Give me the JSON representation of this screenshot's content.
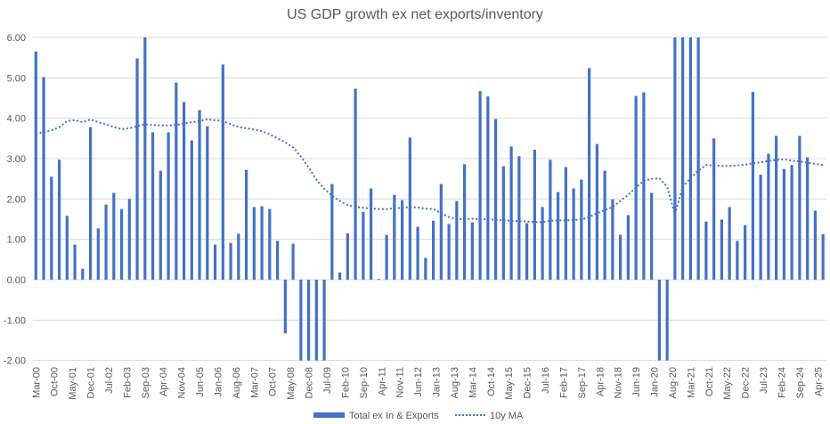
{
  "chart_data": {
    "type": "bar",
    "title": "US GDP growth ex net exports/inventory",
    "xlabel": "",
    "ylabel": "",
    "ylim": [
      -2,
      6
    ],
    "yticks": [
      "6.00",
      "5.00",
      "4.00",
      "3.00",
      "2.00",
      "1.00",
      "0.00",
      "-1.00",
      "-2.00"
    ],
    "ytick_values": [
      6,
      5,
      4,
      3,
      2,
      1,
      0,
      -1,
      -2
    ],
    "grid": true,
    "legend_position": "bottom",
    "x_start": "Mar-00",
    "x_step_months": 3,
    "xtick_labels": [
      "Mar-00",
      "Oct-00",
      "May-01",
      "Dec-01",
      "Jul-02",
      "Feb-03",
      "Sep-03",
      "Apr-04",
      "Nov-04",
      "Jun-05",
      "Jan-06",
      "Aug-06",
      "Mar-07",
      "Oct-07",
      "May-08",
      "Dec-08",
      "Jul-09",
      "Feb-10",
      "Sep-10",
      "Apr-11",
      "Nov-11",
      "Jun-12",
      "Jan-13",
      "Aug-13",
      "Mar-14",
      "Oct-14",
      "May-15",
      "Dec-15",
      "Jul-16",
      "Feb-17",
      "Sep-17",
      "Apr-18",
      "Nov-18",
      "Jun-19",
      "Jan-20",
      "Aug-20",
      "Mar-21",
      "Oct-21",
      "May-22",
      "Dec-22",
      "Jul-23",
      "Feb-24",
      "Sep-24",
      "Apr-25"
    ],
    "xtick_step_months": 7,
    "series": [
      {
        "name": "Total ex In & Exports",
        "type": "bar",
        "color": "#4472C4",
        "values": [
          5.65,
          5.02,
          2.55,
          2.97,
          1.58,
          0.87,
          0.27,
          3.78,
          1.27,
          1.86,
          2.15,
          1.75,
          2.0,
          5.48,
          6.0,
          3.65,
          2.7,
          3.65,
          4.88,
          4.4,
          3.45,
          4.2,
          3.8,
          0.87,
          5.33,
          0.91,
          1.14,
          2.72,
          1.8,
          1.82,
          1.75,
          0.96,
          -1.33,
          0.89,
          -2.0,
          -2.0,
          -2.0,
          -2.0,
          2.37,
          0.18,
          1.15,
          4.73,
          1.68,
          2.26,
          0.02,
          1.11,
          2.1,
          1.97,
          3.52,
          1.31,
          0.54,
          1.46,
          2.37,
          1.38,
          1.95,
          2.86,
          1.42,
          4.67,
          4.54,
          3.98,
          2.81,
          3.3,
          3.06,
          1.4,
          3.22,
          1.8,
          2.97,
          2.17,
          2.79,
          2.26,
          2.48,
          5.24,
          3.36,
          2.7,
          1.99,
          1.11,
          1.6,
          4.55,
          4.64,
          2.15,
          -2.0,
          -2.0,
          6.0,
          6.0,
          6.0,
          6.0,
          1.44,
          3.5,
          1.49,
          1.8,
          0.96,
          1.35,
          4.65,
          2.6,
          3.12,
          3.56,
          2.74,
          2.84,
          3.56,
          3.03,
          1.71,
          1.13
        ]
      },
      {
        "name": "10y MA",
        "type": "line",
        "style": "dotted",
        "color": "#4472C4",
        "values": [
          3.6,
          3.66,
          3.7,
          3.78,
          3.93,
          3.95,
          3.9,
          3.97,
          3.9,
          3.85,
          3.78,
          3.73,
          3.75,
          3.8,
          3.85,
          3.83,
          3.82,
          3.82,
          3.83,
          3.87,
          3.9,
          3.93,
          3.97,
          3.95,
          3.93,
          3.85,
          3.78,
          3.75,
          3.72,
          3.68,
          3.6,
          3.5,
          3.4,
          3.28,
          3.05,
          2.78,
          2.48,
          2.25,
          2.08,
          1.95,
          1.85,
          1.8,
          1.78,
          1.76,
          1.75,
          1.75,
          1.77,
          1.78,
          1.8,
          1.79,
          1.76,
          1.75,
          1.65,
          1.55,
          1.5,
          1.5,
          1.51,
          1.5,
          1.5,
          1.48,
          1.47,
          1.46,
          1.45,
          1.44,
          1.43,
          1.42,
          1.46,
          1.47,
          1.47,
          1.48,
          1.49,
          1.55,
          1.65,
          1.72,
          1.8,
          1.95,
          2.1,
          2.28,
          2.45,
          2.5,
          2.51,
          2.3,
          1.62,
          2.3,
          2.52,
          2.7,
          2.84,
          2.83,
          2.82,
          2.82,
          2.83,
          2.85,
          2.88,
          2.91,
          2.94,
          2.97,
          2.98,
          2.95,
          2.93,
          2.9,
          2.87,
          2.84
        ]
      }
    ]
  }
}
